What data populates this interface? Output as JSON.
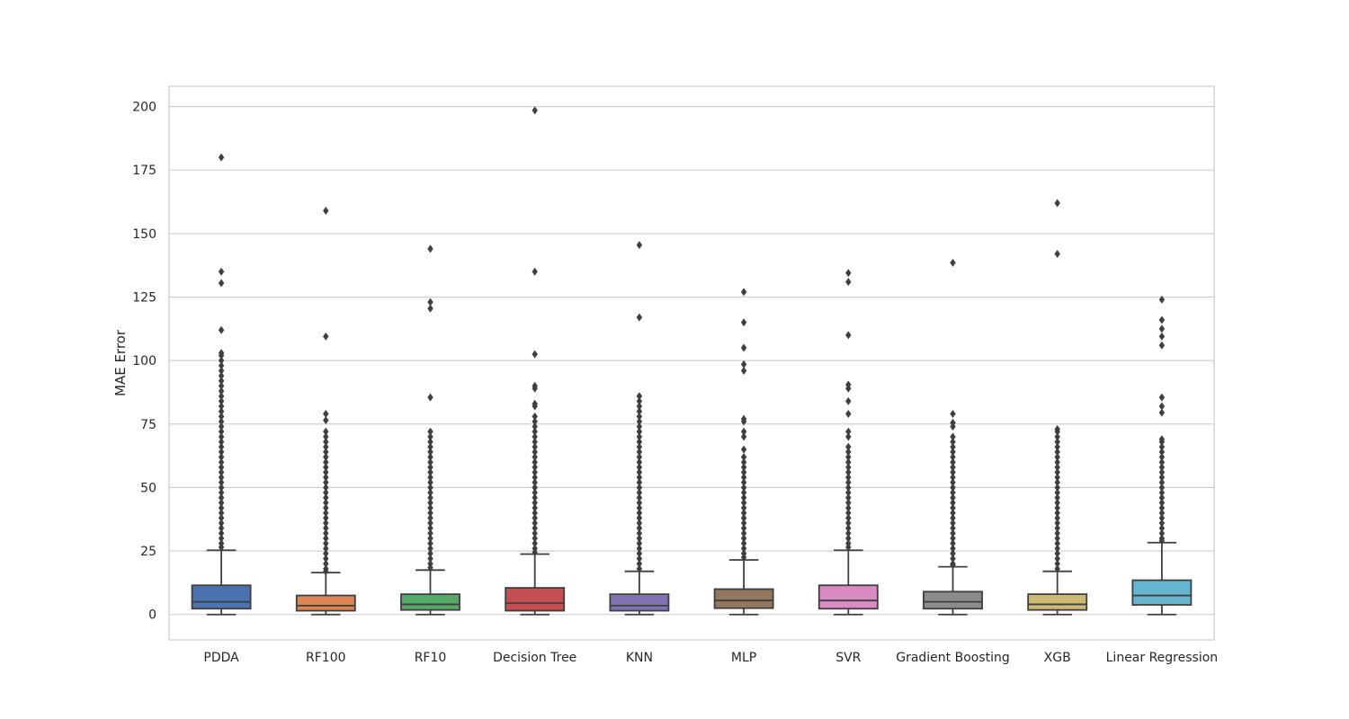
{
  "chart_data": {
    "type": "box",
    "xlabel": "",
    "ylabel": "MAE Error",
    "ylim": [
      -10,
      208
    ],
    "yticks": [
      0,
      25,
      50,
      75,
      100,
      125,
      150,
      175,
      200
    ],
    "grid": true,
    "categories": [
      "PDDA",
      "RF100",
      "RF10",
      "Decision Tree",
      "KNN",
      "MLP",
      "SVR",
      "Gradient Boosting",
      "XGB",
      "Linear Regression"
    ],
    "colors": [
      "#4c72b0",
      "#dd8452",
      "#55a868",
      "#c44e52",
      "#8172b3",
      "#937860",
      "#da8bc3",
      "#8c8c8c",
      "#ccb974",
      "#64b5cd"
    ],
    "boxes": [
      {
        "category": "PDDA",
        "whislo": 0,
        "q1": 2.3,
        "median": 5,
        "q3": 11.5,
        "whishi": 25.3,
        "outliers": [
          180,
          135,
          130.5,
          112,
          103,
          102,
          100,
          98,
          96,
          94,
          92,
          90,
          88,
          86,
          84,
          82,
          80,
          78,
          76,
          74,
          72,
          70,
          68,
          66,
          64,
          62,
          60,
          58,
          56,
          54,
          52,
          50,
          48,
          46,
          44,
          42,
          40,
          38,
          36,
          34,
          32,
          30,
          28,
          26.5
        ]
      },
      {
        "category": "RF100",
        "whislo": 0,
        "q1": 1.5,
        "median": 3.5,
        "q3": 7.5,
        "whishi": 16.5,
        "outliers": [
          159,
          109.5,
          79,
          76.5,
          72,
          70,
          68,
          66,
          64,
          62,
          60,
          58,
          56,
          54,
          52,
          50,
          48,
          46,
          44,
          42,
          40,
          38,
          36,
          34,
          32,
          30,
          28,
          26,
          24,
          22,
          20,
          18,
          17
        ]
      },
      {
        "category": "RF10",
        "whislo": 0,
        "q1": 1.8,
        "median": 4,
        "q3": 8,
        "whishi": 17.5,
        "outliers": [
          144,
          123,
          120.5,
          85.5,
          72,
          70,
          68,
          66,
          64,
          62,
          60,
          58,
          56,
          54,
          52,
          50,
          48,
          46,
          44,
          42,
          40,
          38,
          36,
          34,
          32,
          30,
          28,
          26,
          24,
          22,
          20,
          18.5
        ]
      },
      {
        "category": "Decision Tree",
        "whislo": 0,
        "q1": 1.5,
        "median": 4.5,
        "q3": 10.5,
        "whishi": 23.8,
        "outliers": [
          198.5,
          135,
          102.5,
          90,
          89,
          83,
          82,
          78,
          76,
          74,
          72,
          70,
          68,
          66,
          64,
          62,
          60,
          58,
          56,
          54,
          52,
          50,
          48,
          46,
          44,
          42,
          40,
          38,
          36,
          34,
          32,
          30,
          28,
          26,
          24.5
        ]
      },
      {
        "category": "KNN",
        "whislo": 0,
        "q1": 1.5,
        "median": 3.5,
        "q3": 8,
        "whishi": 17,
        "outliers": [
          145.5,
          117,
          86,
          84,
          82,
          80,
          78,
          76,
          74,
          72,
          70,
          68,
          66,
          64,
          62,
          60,
          58,
          56,
          54,
          52,
          50,
          48,
          46,
          44,
          42,
          40,
          38,
          36,
          34,
          32,
          30,
          28,
          26,
          24,
          22,
          20,
          18
        ]
      },
      {
        "category": "MLP",
        "whislo": 0,
        "q1": 2.5,
        "median": 5.5,
        "q3": 10,
        "whishi": 21.5,
        "outliers": [
          127,
          115,
          105,
          98.5,
          96,
          77,
          76,
          72,
          70,
          65,
          62,
          60,
          58,
          56,
          54,
          52,
          50,
          48,
          46,
          44,
          42,
          40,
          38,
          36,
          34,
          32,
          30,
          28,
          26,
          24,
          22.5
        ]
      },
      {
        "category": "SVR",
        "whislo": 0,
        "q1": 2.3,
        "median": 5.5,
        "q3": 11.5,
        "whishi": 25.3,
        "outliers": [
          134.5,
          131,
          110,
          90.5,
          89,
          84,
          79,
          72,
          70,
          66,
          64,
          62,
          60,
          58,
          56,
          54,
          52,
          50,
          48,
          46,
          44,
          42,
          40,
          38,
          36,
          34,
          32,
          30,
          28,
          26.5
        ]
      },
      {
        "category": "Gradient Boosting",
        "whislo": 0,
        "q1": 2.3,
        "median": 5,
        "q3": 9,
        "whishi": 18.8,
        "outliers": [
          138.5,
          79,
          75.5,
          74,
          70,
          68,
          66,
          64,
          62,
          60,
          58,
          56,
          54,
          52,
          50,
          48,
          46,
          44,
          42,
          40,
          38,
          36,
          34,
          32,
          30,
          28,
          26,
          24,
          22,
          20,
          19.5
        ]
      },
      {
        "category": "XGB",
        "whislo": 0,
        "q1": 1.8,
        "median": 4,
        "q3": 8,
        "whishi": 17,
        "outliers": [
          162,
          142,
          73,
          72,
          70,
          68,
          66,
          64,
          62,
          60,
          58,
          56,
          54,
          52,
          50,
          48,
          46,
          44,
          42,
          40,
          38,
          36,
          34,
          32,
          30,
          28,
          26,
          24,
          22,
          20,
          18
        ]
      },
      {
        "category": "Linear Regression",
        "whislo": 0,
        "q1": 3.8,
        "median": 7.5,
        "q3": 13.5,
        "whishi": 28.3,
        "outliers": [
          124,
          116,
          112.5,
          109.5,
          106,
          85.5,
          82,
          79.5,
          69,
          68,
          66,
          64,
          62,
          60,
          58,
          56,
          54,
          52,
          50,
          48,
          46,
          44,
          42,
          40,
          38,
          36,
          34,
          32,
          30,
          29
        ]
      }
    ]
  }
}
